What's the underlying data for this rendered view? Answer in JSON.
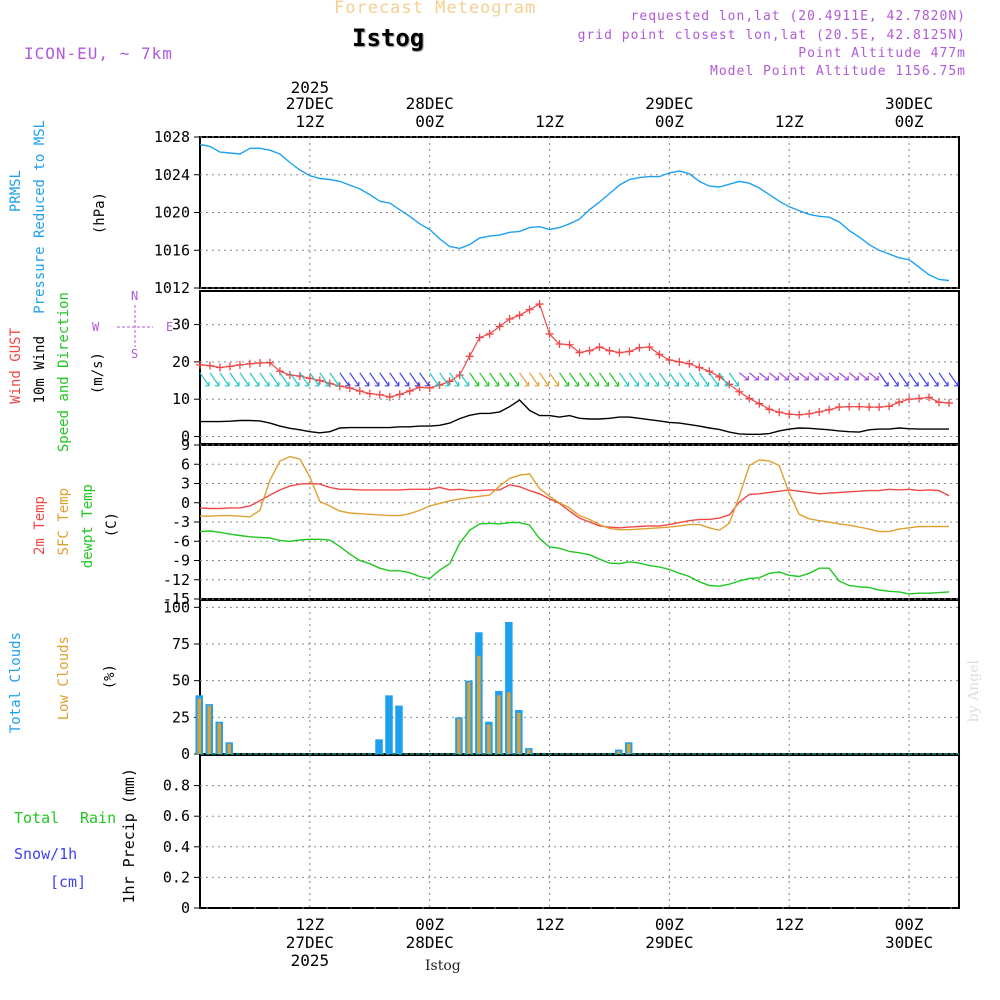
{
  "header": {
    "title": "Forecast Meteogram",
    "place": "Istog",
    "model": "ICON-EU, ~ 7km",
    "requested": "requested lon,lat (20.4911E, 42.7820N)",
    "gridpoint": "grid point closest lon,lat (20.5E, 42.8125N)",
    "point_alt": "Point Altitude 477m",
    "model_alt": "Model Point Altitude 1156.75m"
  },
  "footer": {
    "place": "Istog",
    "watermark": "by Angel"
  },
  "top_axis": [
    {
      "line1": "2025",
      "line2": "27DEC",
      "line3": "12Z",
      "hour": 12
    },
    {
      "line1": "",
      "line2": "28DEC",
      "line3": "00Z",
      "hour": 24
    },
    {
      "line1": "",
      "line2": "",
      "line3": "12Z",
      "hour": 36
    },
    {
      "line1": "",
      "line2": "29DEC",
      "line3": "00Z",
      "hour": 48
    },
    {
      "line1": "",
      "line2": "",
      "line3": "12Z",
      "hour": 60
    },
    {
      "line1": "",
      "line2": "30DEC",
      "line3": "00Z",
      "hour": 72
    }
  ],
  "bottom_axis": [
    {
      "line1": "12Z",
      "line2": "27DEC",
      "line3": "2025",
      "hour": 12
    },
    {
      "line1": "00Z",
      "line2": "28DEC",
      "line3": "",
      "hour": 24
    },
    {
      "line1": "12Z",
      "line2": "",
      "line3": "",
      "hour": 36
    },
    {
      "line1": "00Z",
      "line2": "29DEC",
      "line3": "",
      "hour": 48
    },
    {
      "line1": "12Z",
      "line2": "",
      "line3": "",
      "hour": 60
    },
    {
      "line1": "00Z",
      "line2": "30DEC",
      "line3": "",
      "hour": 72
    }
  ],
  "labels": {
    "prmsl": "PRMSL",
    "prmsl_long": "Pressure Reduced to MSL",
    "prmsl_unit": "(hPa)",
    "gust": "Wind GUST",
    "wind10": "10m Wind",
    "winddir": "Speed and Direction",
    "wind_unit": "(m/s)",
    "compass_w": "W",
    "compass_e": "E",
    "compass_n": "N",
    "compass_s": "S",
    "t2m": "2m Temp",
    "tsfc": "SFC Temp",
    "tdew": "dewpt Temp",
    "temp_unit": "(C)",
    "tcc": "Total Clouds",
    "lcc": "Low Clouds",
    "cloud_unit": "(%)",
    "rain_total": "Total",
    "rain_word": "Rain",
    "snow": "Snow/1h",
    "snow_unit": "[cm]",
    "precip_unit": "1hr Precip (mm)"
  },
  "colors": {
    "pressure": "#1ea0f0",
    "gust": "#f04848",
    "wind": "#000000",
    "t2m": "#f04848",
    "tsfc": "#e0a030",
    "tdew": "#20c820",
    "tcc": "#1ea0f0",
    "lcc": "#e0a030",
    "rain": "#20c820",
    "snow": "#4040f0",
    "purple": "#b05ad8"
  },
  "chart_data": [
    {
      "type": "line",
      "name": "pressure",
      "title": "PRMSL Pressure Reduced to MSL",
      "ylabel": "(hPa)",
      "ylim": [
        1012,
        1028
      ],
      "yticks": [
        1012,
        1016,
        1020,
        1024,
        1028
      ],
      "xlim_hours": [
        1,
        77
      ],
      "x": [
        1,
        2,
        3,
        4,
        5,
        6,
        7,
        8,
        9,
        10,
        11,
        12,
        13,
        14,
        15,
        16,
        17,
        18,
        19,
        20,
        21,
        22,
        23,
        24,
        25,
        26,
        27,
        28,
        29,
        30,
        31,
        32,
        33,
        34,
        35,
        36,
        37,
        38,
        39,
        40,
        41,
        42,
        43,
        44,
        45,
        46,
        47,
        48,
        49,
        50,
        51,
        52,
        53,
        54,
        55,
        56,
        57,
        58,
        59,
        60,
        61,
        62,
        63,
        64,
        65,
        66,
        67,
        68,
        69,
        70,
        71,
        72,
        73,
        74,
        75,
        76
      ],
      "values": [
        1027.2,
        1027.0,
        1026.4,
        1026.3,
        1026.2,
        1026.8,
        1026.8,
        1026.6,
        1026.2,
        1025.3,
        1024.5,
        1023.9,
        1023.6,
        1023.5,
        1023.3,
        1022.9,
        1022.5,
        1021.9,
        1021.2,
        1021.0,
        1020.3,
        1019.6,
        1018.8,
        1018.2,
        1017.2,
        1016.4,
        1016.2,
        1016.6,
        1017.3,
        1017.5,
        1017.6,
        1017.9,
        1018.0,
        1018.4,
        1018.5,
        1018.2,
        1018.4,
        1018.8,
        1019.3,
        1020.3,
        1021.1,
        1022.0,
        1022.9,
        1023.5,
        1023.7,
        1023.8,
        1023.8,
        1024.2,
        1024.4,
        1024.1,
        1023.3,
        1022.8,
        1022.7,
        1023.0,
        1023.3,
        1023.1,
        1022.6,
        1021.9,
        1021.2,
        1020.6,
        1020.2,
        1019.8,
        1019.6,
        1019.5,
        1019.0,
        1018.1,
        1017.4,
        1016.6,
        1016.0,
        1015.6,
        1015.2,
        1015.0,
        1014.2,
        1013.4,
        1012.9,
        1012.8
      ]
    },
    {
      "type": "line",
      "name": "wind",
      "title": "Wind GUST / 10m Wind Speed and Direction",
      "ylabel": "(m/s)",
      "ylim": [
        -2,
        39
      ],
      "yticks": [
        0,
        10,
        20,
        30
      ],
      "x": [
        1,
        2,
        3,
        4,
        5,
        6,
        7,
        8,
        9,
        10,
        11,
        12,
        13,
        14,
        15,
        16,
        17,
        18,
        19,
        20,
        21,
        22,
        23,
        24,
        25,
        26,
        27,
        28,
        29,
        30,
        31,
        32,
        33,
        34,
        35,
        36,
        37,
        38,
        39,
        40,
        41,
        42,
        43,
        44,
        45,
        46,
        47,
        48,
        49,
        50,
        51,
        52,
        53,
        54,
        55,
        56,
        57,
        58,
        59,
        60,
        61,
        62,
        63,
        64,
        65,
        66,
        67,
        68,
        69,
        70,
        71,
        72,
        73,
        74,
        75,
        76
      ],
      "series": [
        {
          "name": "Wind GUST",
          "values": [
            19.2,
            19.0,
            18.5,
            18.8,
            19.2,
            19.5,
            19.7,
            19.8,
            17.5,
            16.5,
            16.2,
            15.6,
            15.0,
            14.2,
            13.5,
            13.0,
            12.2,
            11.5,
            11.2,
            10.6,
            11.3,
            12.2,
            13.2,
            13.0,
            13.8,
            14.8,
            16.5,
            21.5,
            26.5,
            27.5,
            29.5,
            31.5,
            32.5,
            34.0,
            35.5,
            27.5,
            24.8,
            24.6,
            22.5,
            23.0,
            24.0,
            23.0,
            22.5,
            22.8,
            23.8,
            24.0,
            22.0,
            20.5,
            20.0,
            19.5,
            18.5,
            17.5,
            16.0,
            14.0,
            12.0,
            10.2,
            8.8,
            7.3,
            6.5,
            6.0,
            5.8,
            6.1,
            6.6,
            7.2,
            7.9,
            8.0,
            8.0,
            7.9,
            7.9,
            8.1,
            9.2,
            10.0,
            10.2,
            10.5,
            9.2,
            9.0
          ]
        },
        {
          "name": "10m Wind",
          "values": [
            4.0,
            4.0,
            4.0,
            4.1,
            4.3,
            4.3,
            4.2,
            3.6,
            2.8,
            2.2,
            1.8,
            1.3,
            1.0,
            1.3,
            2.3,
            2.4,
            2.4,
            2.4,
            2.4,
            2.4,
            2.6,
            2.6,
            2.8,
            2.8,
            3.0,
            3.6,
            4.8,
            5.7,
            6.2,
            6.2,
            6.6,
            8.0,
            9.8,
            7.0,
            5.6,
            5.6,
            5.2,
            5.6,
            4.9,
            4.7,
            4.7,
            4.9,
            5.2,
            5.2,
            4.9,
            4.5,
            4.2,
            3.8,
            3.6,
            3.2,
            2.8,
            2.3,
            1.9,
            1.2,
            0.7,
            0.6,
            0.6,
            0.8,
            1.5,
            2.0,
            2.3,
            2.2,
            2.0,
            1.8,
            1.5,
            1.3,
            1.2,
            1.8,
            2.0,
            2.0,
            2.3,
            2.1,
            2.0,
            2.0,
            2.0,
            2.0
          ]
        }
      ],
      "direction_arrows": [
        {
          "from": 1,
          "to": 8,
          "color": "#20c8c8",
          "dir": "NW"
        },
        {
          "from": 8,
          "to": 15,
          "color": "#20c8c8",
          "dir": "NW"
        },
        {
          "from": 15,
          "to": 24,
          "color": "#4040f0",
          "dir": "NW"
        },
        {
          "from": 24,
          "to": 28,
          "color": "#20c8c8",
          "dir": "NW"
        },
        {
          "from": 28,
          "to": 33,
          "color": "#20c820",
          "dir": "NW"
        },
        {
          "from": 33,
          "to": 37,
          "color": "#e0a030",
          "dir": "NW"
        },
        {
          "from": 37,
          "to": 43,
          "color": "#20c820",
          "dir": "NW"
        },
        {
          "from": 43,
          "to": 55,
          "color": "#20c8c8",
          "dir": "NW"
        },
        {
          "from": 55,
          "to": 69,
          "color": "#a040e0",
          "dir": "W"
        },
        {
          "from": 69,
          "to": 77,
          "color": "#4040f0",
          "dir": "NW"
        }
      ]
    },
    {
      "type": "line",
      "name": "temperature",
      "title": "2m Temp / SFC Temp / dewpt Temp",
      "ylabel": "(C)",
      "ylim": [
        -15,
        9
      ],
      "yticks": [
        -15,
        -12,
        -9,
        -6,
        -3,
        0,
        3,
        6,
        9
      ],
      "x": [
        1,
        2,
        3,
        4,
        5,
        6,
        7,
        8,
        9,
        10,
        11,
        12,
        13,
        14,
        15,
        16,
        17,
        18,
        19,
        20,
        21,
        22,
        23,
        24,
        25,
        26,
        27,
        28,
        29,
        30,
        31,
        32,
        33,
        34,
        35,
        36,
        37,
        38,
        39,
        40,
        41,
        42,
        43,
        44,
        45,
        46,
        47,
        48,
        49,
        50,
        51,
        52,
        53,
        54,
        55,
        56,
        57,
        58,
        59,
        60,
        61,
        62,
        63,
        64,
        65,
        66,
        67,
        68,
        69,
        70,
        71,
        72,
        73,
        74,
        75,
        76
      ],
      "series": [
        {
          "name": "2m Temp",
          "values": [
            -0.8,
            -0.9,
            -0.9,
            -0.8,
            -0.8,
            -0.5,
            0.3,
            1.2,
            2.0,
            2.6,
            2.9,
            3.0,
            2.9,
            2.4,
            2.1,
            2.1,
            2.0,
            2.0,
            2.0,
            2.0,
            2.0,
            2.1,
            2.1,
            2.1,
            2.4,
            2.0,
            2.1,
            1.9,
            1.9,
            2.0,
            2.0,
            2.8,
            2.5,
            1.9,
            1.4,
            0.6,
            -0.1,
            -1.3,
            -2.4,
            -3.0,
            -3.6,
            -3.8,
            -3.9,
            -3.8,
            -3.7,
            -3.6,
            -3.6,
            -3.4,
            -3.1,
            -2.8,
            -2.6,
            -2.6,
            -2.4,
            -1.9,
            0.1,
            1.3,
            1.4,
            1.6,
            1.8,
            2.0,
            1.8,
            1.6,
            1.4,
            1.5,
            1.6,
            1.7,
            1.8,
            1.9,
            1.9,
            2.1,
            2.0,
            2.1,
            1.9,
            2.0,
            1.9,
            1.1
          ]
        },
        {
          "name": "SFC Temp",
          "values": [
            -2.1,
            -2.1,
            -2.0,
            -2.0,
            -2.1,
            -2.2,
            -1.2,
            3.5,
            6.5,
            7.2,
            6.8,
            4.0,
            0.2,
            -0.5,
            -1.3,
            -1.6,
            -1.7,
            -1.8,
            -1.9,
            -2.0,
            -2.0,
            -1.7,
            -1.2,
            -0.5,
            -0.1,
            0.3,
            0.6,
            0.8,
            1.0,
            1.2,
            2.6,
            3.8,
            4.3,
            4.5,
            2.2,
            1.0,
            0.0,
            -0.8,
            -2.0,
            -2.6,
            -3.4,
            -4.0,
            -4.2,
            -4.2,
            -4.1,
            -4.0,
            -3.9,
            -3.8,
            -3.6,
            -3.4,
            -3.4,
            -3.9,
            -4.3,
            -3.2,
            1.0,
            5.8,
            6.7,
            6.5,
            5.8,
            1.5,
            -1.8,
            -2.5,
            -2.8,
            -3.0,
            -3.3,
            -3.5,
            -3.8,
            -4.1,
            -4.5,
            -4.5,
            -4.1,
            -3.9,
            -3.7,
            -3.7,
            -3.7,
            -3.7
          ]
        },
        {
          "name": "dewpt Temp",
          "values": [
            -4.5,
            -4.4,
            -4.6,
            -4.9,
            -5.1,
            -5.3,
            -5.4,
            -5.5,
            -5.9,
            -6.0,
            -5.8,
            -5.7,
            -5.7,
            -5.8,
            -6.8,
            -8.0,
            -9.0,
            -9.5,
            -10.2,
            -10.6,
            -10.6,
            -10.9,
            -11.5,
            -11.8,
            -10.5,
            -9.5,
            -6.3,
            -4.3,
            -3.3,
            -3.2,
            -3.3,
            -3.1,
            -3.1,
            -3.5,
            -5.6,
            -6.9,
            -7.1,
            -7.6,
            -7.8,
            -8.1,
            -8.8,
            -9.4,
            -9.5,
            -9.2,
            -9.4,
            -9.8,
            -10.0,
            -10.4,
            -11.0,
            -11.5,
            -12.3,
            -12.9,
            -13.0,
            -12.7,
            -12.2,
            -11.8,
            -11.7,
            -11.0,
            -10.8,
            -11.3,
            -11.5,
            -11.0,
            -10.2,
            -10.2,
            -12.2,
            -12.9,
            -13.1,
            -13.2,
            -13.6,
            -13.8,
            -13.9,
            -14.2,
            -14.1,
            -14.1,
            -14.0,
            -13.9
          ]
        }
      ]
    },
    {
      "type": "bar",
      "name": "clouds",
      "title": "Total Clouds / Low Clouds",
      "ylabel": "(%)",
      "ylim": [
        0,
        105
      ],
      "yticks": [
        0,
        25,
        50,
        75,
        100
      ],
      "x": [
        1,
        2,
        3,
        4,
        5,
        6,
        7,
        8,
        9,
        10,
        11,
        12,
        13,
        14,
        15,
        16,
        17,
        18,
        19,
        20,
        21,
        22,
        23,
        24,
        25,
        26,
        27,
        28,
        29,
        30,
        31,
        32,
        33,
        34,
        35,
        36,
        37,
        38,
        39,
        40,
        41,
        42,
        43,
        44,
        45,
        46,
        47,
        48,
        49,
        50,
        51,
        52,
        53,
        54,
        55,
        56,
        57,
        58,
        59,
        60,
        61,
        62,
        63,
        64,
        65,
        66,
        67,
        68,
        69,
        70,
        71,
        72,
        73,
        74,
        75,
        76
      ],
      "series": [
        {
          "name": "Total Clouds",
          "values": [
            40,
            34,
            22,
            8,
            0,
            0,
            0,
            0,
            0,
            0,
            0,
            0,
            0,
            0,
            0,
            0,
            0,
            0,
            10,
            40,
            33,
            0,
            0,
            0,
            0,
            0,
            25,
            50,
            83,
            22,
            43,
            90,
            30,
            4,
            0,
            0,
            0,
            0,
            0,
            0,
            0,
            0,
            3,
            8,
            0,
            0,
            0,
            0,
            0,
            0,
            0,
            0,
            0,
            0,
            0,
            0,
            0,
            0,
            0,
            0,
            0,
            0,
            0,
            0,
            0,
            0,
            0,
            0,
            0,
            0,
            0,
            0,
            0,
            0,
            0,
            0
          ]
        },
        {
          "name": "Low Clouds",
          "values": [
            38,
            33,
            21,
            7,
            0,
            0,
            0,
            0,
            0,
            0,
            0,
            0,
            0,
            0,
            0,
            0,
            0,
            0,
            0,
            0,
            0,
            0,
            0,
            0,
            0,
            0,
            24,
            49,
            67,
            20,
            40,
            42,
            28,
            3,
            0,
            0,
            0,
            0,
            0,
            0,
            0,
            0,
            2,
            7,
            0,
            0,
            0,
            0,
            0,
            0,
            0,
            0,
            0,
            0,
            0,
            0,
            0,
            0,
            0,
            0,
            0,
            0,
            0,
            0,
            0,
            0,
            0,
            0,
            0,
            0,
            0,
            0,
            0,
            0,
            0,
            0
          ]
        }
      ]
    },
    {
      "type": "bar",
      "name": "precipitation",
      "title": "Total Rain / Snow/1h [cm]",
      "ylabel": "1hr Precip (mm)",
      "ylim": [
        0,
        1.0
      ],
      "yticks": [
        0,
        0.2,
        0.4,
        0.6,
        0.8
      ],
      "series": [
        {
          "name": "Total Rain",
          "values": []
        },
        {
          "name": "Snow/1h",
          "values": []
        }
      ]
    }
  ]
}
